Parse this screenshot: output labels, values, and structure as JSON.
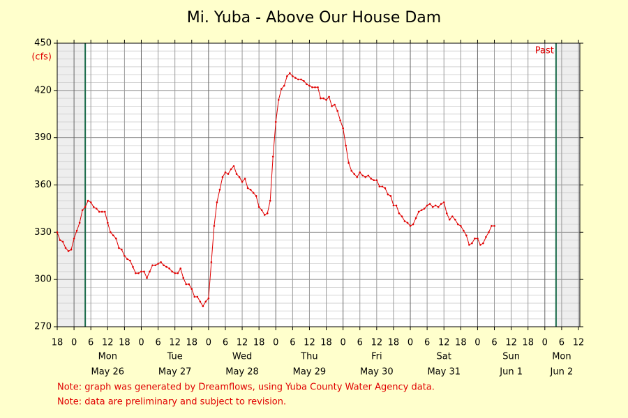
{
  "chart_data": {
    "type": "line",
    "title": "Mi. Yuba - Above Our House Dam",
    "y_label": "(cfs)",
    "annotation": "Past",
    "notes": [
      "Note: graph was generated by Dreamflows, using Yuba County Water Agency data.",
      "Note: data are preliminary and subject to revision."
    ],
    "color": "#e00000",
    "grid": true,
    "ylim": [
      270,
      450
    ],
    "yticks": [
      270,
      300,
      330,
      360,
      390,
      420,
      450
    ],
    "yminor": [
      275,
      280,
      285,
      290,
      295,
      305,
      310,
      315,
      320,
      325,
      335,
      340,
      345,
      350,
      355,
      365,
      370,
      375,
      380,
      385,
      395,
      400,
      405,
      410,
      415,
      425,
      430,
      435,
      440,
      445
    ],
    "xlim": [
      "May 25 18:00",
      "Jun 2 12:00"
    ],
    "window": [
      "May 26 04:00",
      "Jun 2 04:00"
    ],
    "xticks": [
      {
        "value": "May 25 18:00",
        "label": "18"
      },
      {
        "value": "May 26 00:00",
        "label": "0"
      },
      {
        "value": "May 26 06:00",
        "label": "6"
      },
      {
        "value": "May 26 12:00",
        "label": "12"
      },
      {
        "value": "May 26 18:00",
        "label": "18"
      },
      {
        "value": "May 27 00:00",
        "label": "0"
      },
      {
        "value": "May 27 06:00",
        "label": "6"
      },
      {
        "value": "May 27 12:00",
        "label": "12"
      },
      {
        "value": "May 27 18:00",
        "label": "18"
      },
      {
        "value": "May 28 00:00",
        "label": "0"
      },
      {
        "value": "May 28 06:00",
        "label": "6"
      },
      {
        "value": "May 28 12:00",
        "label": "12"
      },
      {
        "value": "May 28 18:00",
        "label": "18"
      },
      {
        "value": "May 29 00:00",
        "label": "0"
      },
      {
        "value": "May 29 06:00",
        "label": "6"
      },
      {
        "value": "May 29 12:00",
        "label": "12"
      },
      {
        "value": "May 29 18:00",
        "label": "18"
      },
      {
        "value": "May 30 00:00",
        "label": "0"
      },
      {
        "value": "May 30 06:00",
        "label": "6"
      },
      {
        "value": "May 30 12:00",
        "label": "12"
      },
      {
        "value": "May 30 18:00",
        "label": "18"
      },
      {
        "value": "May 31 00:00",
        "label": "0"
      },
      {
        "value": "May 31 06:00",
        "label": "6"
      },
      {
        "value": "May 31 12:00",
        "label": "12"
      },
      {
        "value": "May 31 18:00",
        "label": "18"
      },
      {
        "value": "Jun 1 00:00",
        "label": "0"
      },
      {
        "value": "Jun 1 06:00",
        "label": "6"
      },
      {
        "value": "Jun 1 12:00",
        "label": "12"
      },
      {
        "value": "Jun 1 18:00",
        "label": "18"
      },
      {
        "value": "Jun 2 00:00",
        "label": "0"
      },
      {
        "value": "Jun 2 06:00",
        "label": "6"
      },
      {
        "value": "Jun 2 12:00",
        "label": "12"
      }
    ],
    "day_labels": [
      {
        "value": "May 26 12:00",
        "weekday": "Mon",
        "date": "May 26"
      },
      {
        "value": "May 27 12:00",
        "weekday": "Tue",
        "date": "May 27"
      },
      {
        "value": "May 28 12:00",
        "weekday": "Wed",
        "date": "May 28"
      },
      {
        "value": "May 29 12:00",
        "weekday": "Thu",
        "date": "May 29"
      },
      {
        "value": "May 30 12:00",
        "weekday": "Fri",
        "date": "May 30"
      },
      {
        "value": "May 31 12:00",
        "weekday": "Sat",
        "date": "May 31"
      },
      {
        "value": "Jun 1 12:00",
        "weekday": "Sun",
        "date": "Jun 1"
      },
      {
        "value": "Jun 2 06:00",
        "weekday": "Mon",
        "date": "Jun 2"
      }
    ],
    "x": [
      "May 25 18:00",
      "May 25 19:00",
      "May 25 20:00",
      "May 25 21:00",
      "May 25 22:00",
      "May 25 23:00",
      "May 26 00:00",
      "May 26 01:00",
      "May 26 02:00",
      "May 26 03:00",
      "May 26 04:00",
      "May 26 05:00",
      "May 26 06:00",
      "May 26 07:00",
      "May 26 08:00",
      "May 26 09:00",
      "May 26 10:00",
      "May 26 11:00",
      "May 26 12:00",
      "May 26 13:00",
      "May 26 14:00",
      "May 26 15:00",
      "May 26 16:00",
      "May 26 17:00",
      "May 26 18:00",
      "May 26 19:00",
      "May 26 20:00",
      "May 26 21:00",
      "May 26 22:00",
      "May 26 23:00",
      "May 27 00:00",
      "May 27 01:00",
      "May 27 02:00",
      "May 27 03:00",
      "May 27 04:00",
      "May 27 05:00",
      "May 27 06:00",
      "May 27 07:00",
      "May 27 08:00",
      "May 27 09:00",
      "May 27 10:00",
      "May 27 11:00",
      "May 27 12:00",
      "May 27 13:00",
      "May 27 14:00",
      "May 27 15:00",
      "May 27 16:00",
      "May 27 17:00",
      "May 27 18:00",
      "May 27 19:00",
      "May 27 20:00",
      "May 27 21:00",
      "May 27 22:00",
      "May 27 23:00",
      "May 28 00:00",
      "May 28 01:00",
      "May 28 02:00",
      "May 28 03:00",
      "May 28 04:00",
      "May 28 05:00",
      "May 28 06:00",
      "May 28 07:00",
      "May 28 08:00",
      "May 28 09:00",
      "May 28 10:00",
      "May 28 11:00",
      "May 28 12:00",
      "May 28 13:00",
      "May 28 14:00",
      "May 28 15:00",
      "May 28 16:00",
      "May 28 17:00",
      "May 28 18:00",
      "May 28 19:00",
      "May 28 20:00",
      "May 28 21:00",
      "May 28 22:00",
      "May 28 23:00",
      "May 29 00:00",
      "May 29 01:00",
      "May 29 02:00",
      "May 29 03:00",
      "May 29 04:00",
      "May 29 05:00",
      "May 29 06:00",
      "May 29 07:00",
      "May 29 08:00",
      "May 29 09:00",
      "May 29 10:00",
      "May 29 11:00",
      "May 29 12:00",
      "May 29 13:00",
      "May 29 14:00",
      "May 29 15:00",
      "May 29 16:00",
      "May 29 17:00",
      "May 29 18:00",
      "May 29 19:00",
      "May 29 20:00",
      "May 29 21:00",
      "May 29 22:00",
      "May 29 23:00",
      "May 30 00:00",
      "May 30 01:00",
      "May 30 02:00",
      "May 30 03:00",
      "May 30 04:00",
      "May 30 05:00",
      "May 30 06:00",
      "May 30 07:00",
      "May 30 08:00",
      "May 30 09:00",
      "May 30 10:00",
      "May 30 11:00",
      "May 30 12:00",
      "May 30 13:00",
      "May 30 14:00",
      "May 30 15:00",
      "May 30 16:00",
      "May 30 17:00",
      "May 30 18:00",
      "May 30 19:00",
      "May 30 20:00",
      "May 30 21:00",
      "May 30 22:00",
      "May 30 23:00",
      "May 31 00:00",
      "May 31 01:00",
      "May 31 02:00",
      "May 31 03:00",
      "May 31 04:00",
      "May 31 05:00",
      "May 31 06:00",
      "May 31 07:00",
      "May 31 08:00",
      "May 31 09:00",
      "May 31 10:00",
      "May 31 11:00",
      "May 31 12:00",
      "May 31 13:00",
      "May 31 14:00",
      "May 31 15:00",
      "May 31 16:00",
      "May 31 17:00",
      "May 31 18:00",
      "May 31 19:00",
      "May 31 20:00",
      "May 31 21:00",
      "May 31 22:00",
      "May 31 23:00",
      "Jun 1 00:00",
      "Jun 1 01:00",
      "Jun 1 02:00",
      "Jun 1 03:00",
      "Jun 1 04:00",
      "Jun 1 05:00",
      "Jun 1 06:00"
    ],
    "values": [
      330,
      325,
      324,
      320,
      318,
      319,
      326,
      331,
      336,
      344,
      346,
      350,
      349,
      346,
      345,
      343,
      343,
      343,
      336,
      330,
      328,
      326,
      320,
      319,
      315,
      313,
      312,
      308,
      304,
      304,
      305,
      305,
      301,
      305,
      309,
      309,
      310,
      311,
      309,
      308,
      307,
      305,
      304,
      304,
      307,
      301,
      297,
      297,
      294,
      289,
      289,
      286,
      283,
      286,
      288,
      311,
      334,
      349,
      357,
      365,
      368,
      367,
      370,
      372,
      367,
      365,
      362,
      364,
      358,
      357,
      355,
      353,
      346,
      344,
      341,
      342,
      350,
      378,
      400,
      414,
      421,
      423,
      429,
      431,
      429,
      428,
      427,
      427,
      426,
      424,
      423,
      422,
      422,
      422,
      415,
      415,
      414,
      416,
      410,
      411,
      407,
      401,
      396,
      385,
      374,
      369,
      367,
      365,
      368,
      366,
      365,
      366,
      364,
      363,
      363,
      359,
      359,
      358,
      354,
      353,
      347,
      347,
      342,
      340,
      337,
      336,
      334,
      335,
      339,
      343,
      344,
      345,
      347,
      348,
      346,
      347,
      346,
      348,
      349,
      342,
      338,
      340,
      338,
      335,
      334,
      331,
      328,
      322,
      323,
      326,
      326,
      322,
      323,
      327,
      330,
      334,
      334
    ]
  }
}
